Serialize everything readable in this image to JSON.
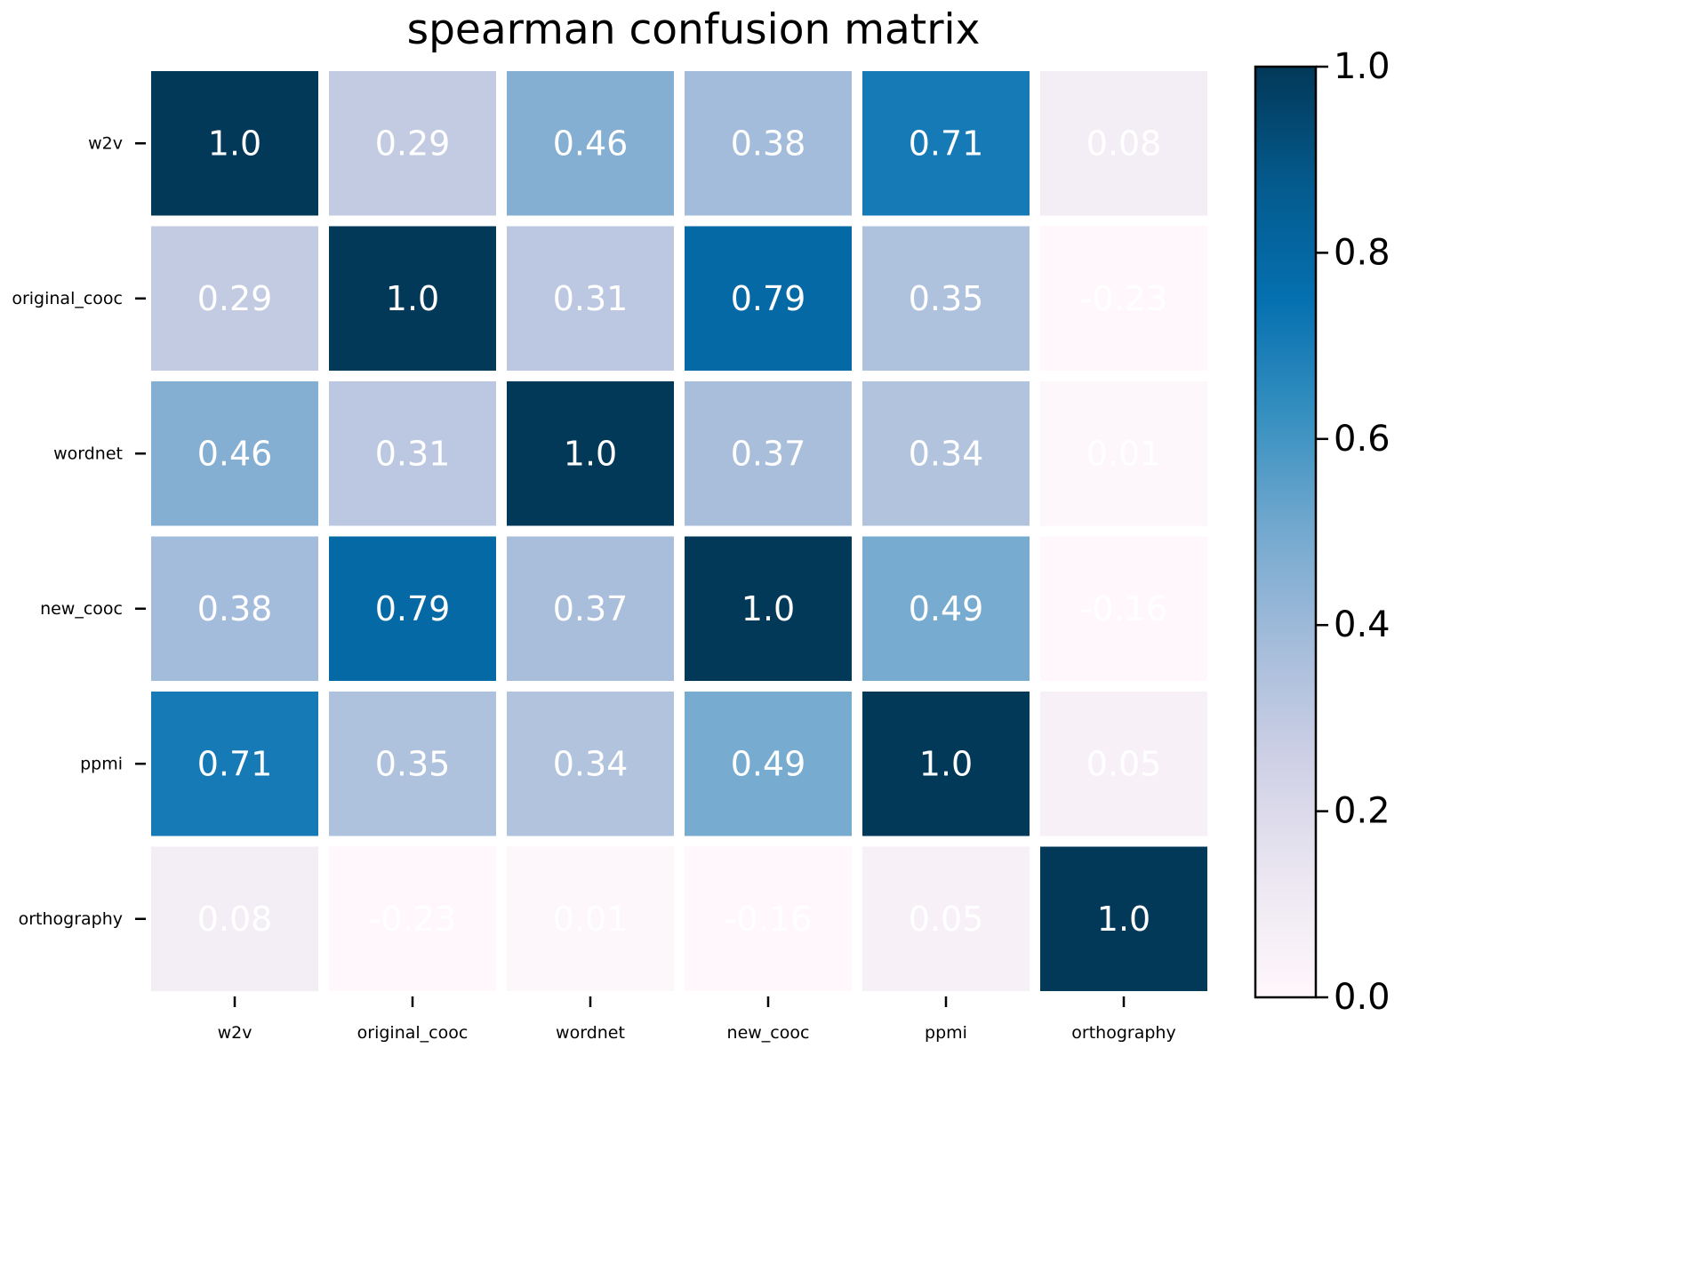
{
  "chart_data": {
    "type": "heatmap",
    "title": "spearman confusion matrix",
    "xlabel": "",
    "ylabel": "",
    "row_labels": [
      "w2v",
      "original_cooc",
      "wordnet",
      "new_cooc",
      "ppmi",
      "orthography"
    ],
    "col_labels": [
      "w2v",
      "original_cooc",
      "wordnet",
      "new_cooc",
      "ppmi",
      "orthography"
    ],
    "values": [
      [
        1.0,
        0.29,
        0.46,
        0.38,
        0.71,
        0.08
      ],
      [
        0.29,
        1.0,
        0.31,
        0.79,
        0.35,
        -0.23
      ],
      [
        0.46,
        0.31,
        1.0,
        0.37,
        0.34,
        0.01
      ],
      [
        0.38,
        0.79,
        0.37,
        1.0,
        0.49,
        -0.16
      ],
      [
        0.71,
        0.35,
        0.34,
        0.49,
        1.0,
        0.05
      ],
      [
        0.08,
        -0.23,
        0.01,
        -0.16,
        0.05,
        1.0
      ]
    ],
    "value_labels": [
      [
        "1.0",
        "0.29",
        "0.46",
        "0.38",
        "0.71",
        "0.08"
      ],
      [
        "0.29",
        "1.0",
        "0.31",
        "0.79",
        "0.35",
        "-0.23"
      ],
      [
        "0.46",
        "0.31",
        "1.0",
        "0.37",
        "0.34",
        "0.01"
      ],
      [
        "0.38",
        "0.79",
        "0.37",
        "1.0",
        "0.49",
        "-0.16"
      ],
      [
        "0.71",
        "0.35",
        "0.34",
        "0.49",
        "1.0",
        "0.05"
      ],
      [
        "0.08",
        "-0.23",
        "0.01",
        "-0.16",
        "0.05",
        "1.0"
      ]
    ],
    "colorbar": {
      "vmin": 0.0,
      "vmax": 1.0,
      "ticks": [
        0.0,
        0.2,
        0.4,
        0.6,
        0.8,
        1.0
      ],
      "tick_labels": [
        "0.0",
        "0.2",
        "0.4",
        "0.6",
        "0.8",
        "1.0"
      ],
      "colormap": "PuBu",
      "colormap_stops": [
        "#fff7fb",
        "#ece7f2",
        "#d0d1e6",
        "#a6bddb",
        "#74a9cf",
        "#3690c0",
        "#0570b0",
        "#045a8d",
        "#023858"
      ]
    },
    "cell_text_color": "#ffffff",
    "grid": false,
    "legend": "colorbar-right"
  }
}
